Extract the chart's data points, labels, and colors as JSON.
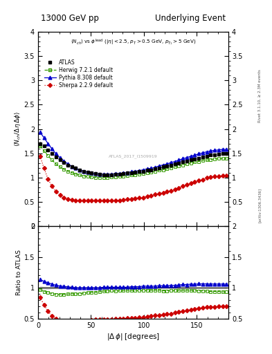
{
  "title_left": "13000 GeV pp",
  "title_right": "Underlying Event",
  "subtitle_text": "$\\langle N_{ch}\\rangle$ vs $\\phi^{\\mathrm{lead}}$ ($|\\eta| < 2.5$, $p_{T} > 0.5$ GeV, $p_{T_1} > 5$ GeV)",
  "watermark": "ATLAS_2017_I1509919",
  "ylabel_main": "$\\langle N_{ch} / \\Delta\\eta\\,\\Delta\\phi\\rangle$",
  "ylabel_ratio": "Ratio to ATLAS",
  "xlabel": "$|\\Delta\\,\\phi|$ [degrees]",
  "right_label1": "Rivet 3.1.10, ≥ 2.3M events",
  "right_label2": "[arXiv:1306.3436]",
  "ylim_main": [
    0,
    4
  ],
  "ylim_ratio": [
    0.5,
    2
  ],
  "xlim": [
    0,
    180
  ],
  "xticks": [
    0,
    50,
    100,
    150
  ],
  "bg_color": "#ffffff",
  "atlas_color": "#000000",
  "herwig_color": "#339900",
  "pythia_color": "#0000cc",
  "sherpa_color": "#cc0000",
  "dphi": [
    1.875,
    5.625,
    9.375,
    13.125,
    16.875,
    20.625,
    24.375,
    28.125,
    31.875,
    35.625,
    39.375,
    43.125,
    46.875,
    50.625,
    54.375,
    58.125,
    61.875,
    65.625,
    69.375,
    73.125,
    76.875,
    80.625,
    84.375,
    88.125,
    91.875,
    95.625,
    99.375,
    103.125,
    106.875,
    110.625,
    114.375,
    118.125,
    121.875,
    125.625,
    129.375,
    133.125,
    136.875,
    140.625,
    144.375,
    148.125,
    151.875,
    155.625,
    159.375,
    163.125,
    166.875,
    170.625,
    174.375,
    178.125
  ],
  "atlas_y": [
    1.7,
    1.65,
    1.57,
    1.5,
    1.43,
    1.37,
    1.31,
    1.26,
    1.22,
    1.19,
    1.16,
    1.13,
    1.11,
    1.09,
    1.08,
    1.07,
    1.06,
    1.06,
    1.06,
    1.07,
    1.07,
    1.08,
    1.09,
    1.1,
    1.11,
    1.12,
    1.13,
    1.15,
    1.16,
    1.18,
    1.2,
    1.22,
    1.24,
    1.26,
    1.28,
    1.3,
    1.32,
    1.34,
    1.36,
    1.38,
    1.4,
    1.42,
    1.44,
    1.46,
    1.47,
    1.48,
    1.49,
    1.49
  ],
  "atlas_err": [
    0.04,
    0.03,
    0.03,
    0.02,
    0.02,
    0.02,
    0.02,
    0.02,
    0.02,
    0.01,
    0.01,
    0.01,
    0.01,
    0.01,
    0.01,
    0.01,
    0.01,
    0.01,
    0.01,
    0.01,
    0.01,
    0.01,
    0.01,
    0.01,
    0.01,
    0.01,
    0.01,
    0.01,
    0.01,
    0.01,
    0.01,
    0.01,
    0.01,
    0.01,
    0.01,
    0.01,
    0.01,
    0.01,
    0.01,
    0.01,
    0.01,
    0.01,
    0.01,
    0.01,
    0.01,
    0.01,
    0.01,
    0.01
  ],
  "herwig_y": [
    1.65,
    1.55,
    1.45,
    1.36,
    1.28,
    1.22,
    1.17,
    1.13,
    1.1,
    1.07,
    1.05,
    1.03,
    1.02,
    1.01,
    1.0,
    1.0,
    1.0,
    1.0,
    1.01,
    1.01,
    1.02,
    1.03,
    1.04,
    1.05,
    1.06,
    1.07,
    1.08,
    1.1,
    1.11,
    1.13,
    1.15,
    1.16,
    1.18,
    1.2,
    1.22,
    1.24,
    1.26,
    1.28,
    1.3,
    1.32,
    1.33,
    1.35,
    1.36,
    1.37,
    1.38,
    1.39,
    1.39,
    1.39
  ],
  "pythia_y": [
    1.93,
    1.82,
    1.7,
    1.59,
    1.49,
    1.41,
    1.34,
    1.28,
    1.23,
    1.19,
    1.16,
    1.13,
    1.11,
    1.09,
    1.08,
    1.07,
    1.07,
    1.07,
    1.07,
    1.08,
    1.08,
    1.09,
    1.1,
    1.12,
    1.13,
    1.14,
    1.16,
    1.18,
    1.19,
    1.21,
    1.24,
    1.26,
    1.28,
    1.31,
    1.33,
    1.36,
    1.39,
    1.41,
    1.44,
    1.46,
    1.49,
    1.51,
    1.53,
    1.55,
    1.56,
    1.57,
    1.58,
    1.58
  ],
  "sherpa_y": [
    1.44,
    1.19,
    0.97,
    0.82,
    0.71,
    0.64,
    0.59,
    0.56,
    0.54,
    0.53,
    0.52,
    0.52,
    0.52,
    0.52,
    0.52,
    0.52,
    0.52,
    0.52,
    0.52,
    0.53,
    0.53,
    0.54,
    0.55,
    0.56,
    0.57,
    0.58,
    0.59,
    0.61,
    0.63,
    0.65,
    0.67,
    0.69,
    0.71,
    0.73,
    0.76,
    0.79,
    0.82,
    0.85,
    0.88,
    0.91,
    0.94,
    0.96,
    0.99,
    1.01,
    1.02,
    1.03,
    1.04,
    1.04
  ]
}
